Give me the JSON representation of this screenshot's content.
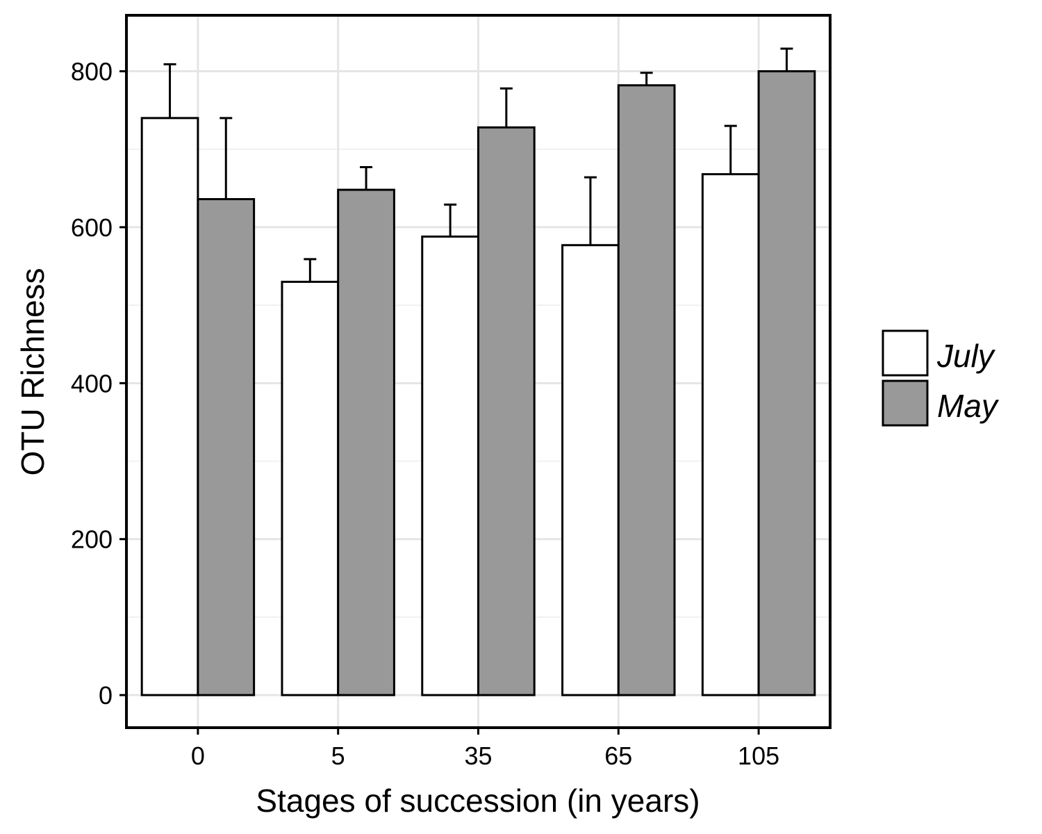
{
  "chart_data": {
    "type": "bar",
    "categories": [
      "0",
      "5",
      "35",
      "65",
      "105"
    ],
    "series": [
      {
        "name": "July",
        "values": [
          740,
          530,
          588,
          577,
          668
        ],
        "errors": [
          69,
          29,
          41,
          87,
          62
        ],
        "color": "#ffffff"
      },
      {
        "name": "May",
        "values": [
          636,
          648,
          728,
          782,
          800
        ],
        "errors": [
          104,
          29,
          50,
          16,
          29
        ],
        "color": "#999999"
      }
    ],
    "xlabel": "Stages of succession (in years)",
    "ylabel": "OTU Richness",
    "yticks": [
      "0",
      "200",
      "400",
      "600",
      "800"
    ],
    "ylim": [
      -40,
      870
    ],
    "grid": true,
    "legend_position": "right"
  }
}
